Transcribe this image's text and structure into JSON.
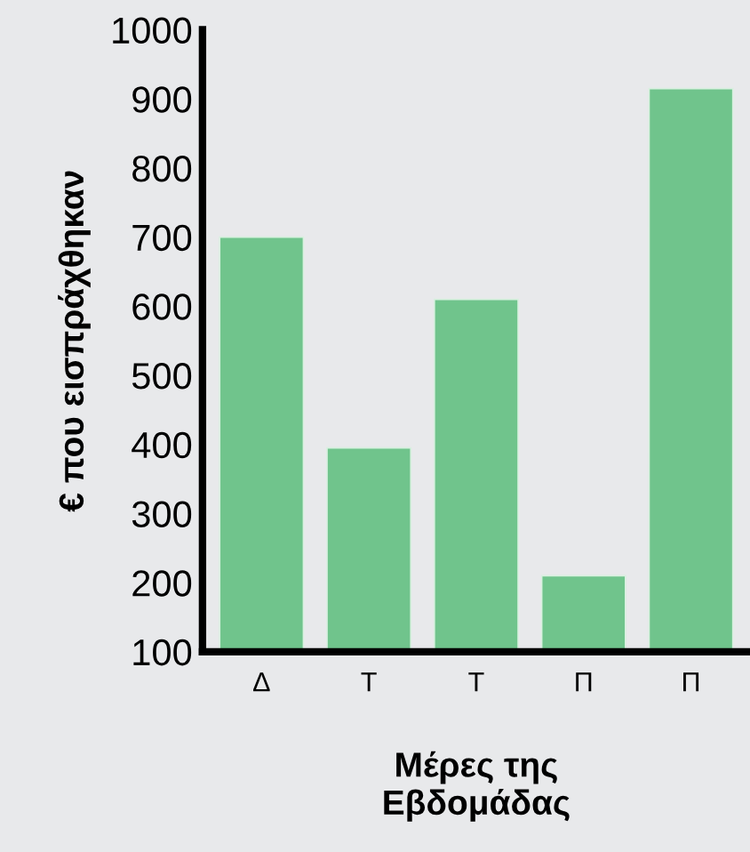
{
  "chart_data": {
    "type": "bar",
    "categories": [
      "Δ",
      "Τ",
      "Τ",
      "Π",
      "Π"
    ],
    "values": [
      700,
      395,
      610,
      210,
      915
    ],
    "color": "#70c48c",
    "xlabel": "Μέρες της\nΕβδομάδας",
    "ylabel": "€ που εισπράχθηκαν",
    "ylim": [
      100,
      1000
    ],
    "yticks": [
      100,
      200,
      300,
      400,
      500,
      600,
      700,
      800,
      900,
      1000
    ],
    "grid": false
  }
}
